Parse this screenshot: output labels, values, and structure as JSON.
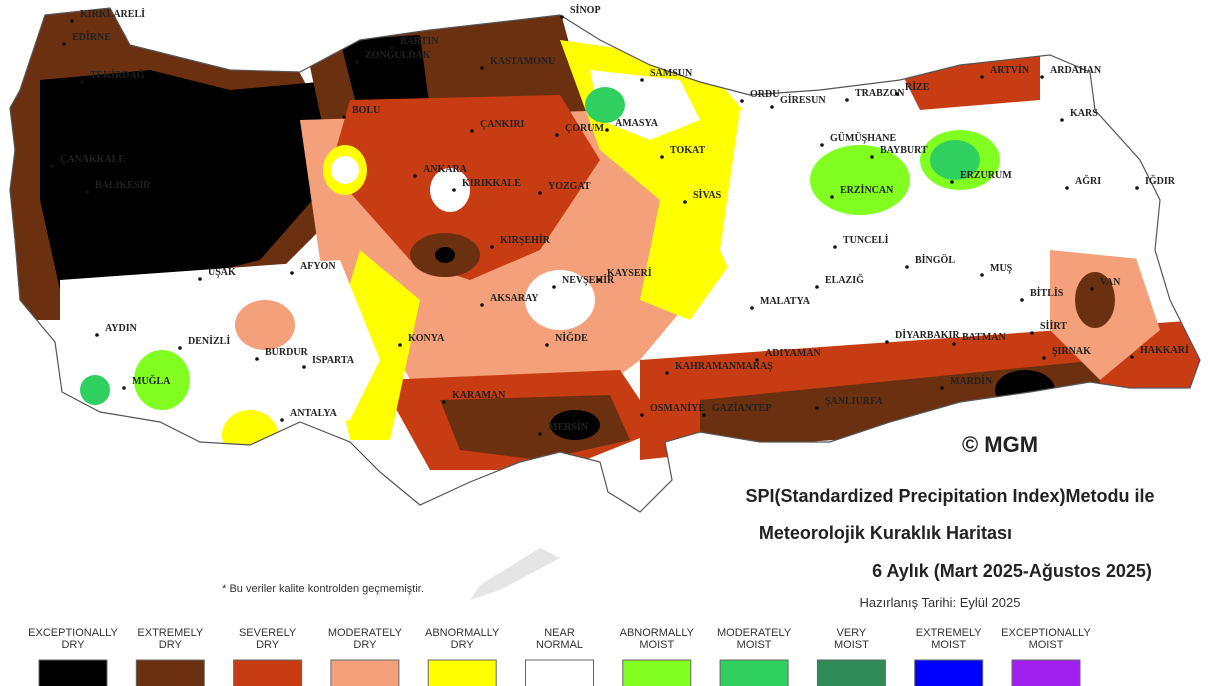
{
  "title_lines": [
    "SPI(Standardized Precipitation Index)Metodu ile",
    "Meteorolojik Kuraklık Haritası",
    "6 Aylık (Mart 2025-Ağustos 2025)"
  ],
  "date": "Hazırlanış Tarihi: Eylül 2025",
  "copyright": "© MGM",
  "note": "* Bu veriler kalite kontrolden geçmemiştir.",
  "cities": [
    "KIRKLARELİ",
    "EDİRNE",
    "TEKİRDAĞ",
    "ÇANAKKALE",
    "BALIKESİR",
    "BARTIN",
    "ZONGULDAK",
    "KASTAMONU",
    "SİNOP",
    "SAMSUN",
    "AMASYA",
    "ÇORUM",
    "ÇANKIRI",
    "BOLU",
    "ORDU",
    "GİRESUN",
    "TRABZON",
    "RİZE",
    "ARTVİN",
    "ARDAHAN",
    "KARS",
    "TOKAT",
    "GÜMÜŞHANE",
    "BAYBURT",
    "ERZURUM",
    "ERZİNCAN",
    "AĞRI",
    "IĞDIR",
    "SİVAS",
    "YOZGAT",
    "KIRIKKALE",
    "ANKARA",
    "KIRŞEHİR",
    "KAYSERİ",
    "NEVŞEHİR",
    "AKSARAY",
    "NİĞDE",
    "TUNCELİ",
    "BİNGÖL",
    "MUŞ",
    "BİTLİS",
    "VAN",
    "ELAZIĞ",
    "MALATYA",
    "DİYARBAKIR",
    "BATMAN",
    "SİİRT",
    "ŞIRNAK",
    "HAKKARİ",
    "MARDİN",
    "ADIYAMAN",
    "KAHRAMANMARAŞ",
    "OSMANİYE",
    "GAZİANTEP",
    "ŞANLIURFA",
    "KARAMAN",
    "MERSİN",
    "KONYA",
    "AFYON",
    "UŞAK",
    "AYDIN",
    "DENİZLİ",
    "MUĞLA",
    "BURDUR",
    "ISPARTA",
    "ANTALYA"
  ],
  "legend": [
    {
      "label": [
        "EXCEPTIONALLY",
        "DRY"
      ],
      "color": "#000000"
    },
    {
      "label": [
        "EXTREMELY",
        "DRY"
      ],
      "color": "#6b3010"
    },
    {
      "label": [
        "SEVERELY",
        "DRY"
      ],
      "color": "#c83c14"
    },
    {
      "label": [
        "MODERATELY",
        "DRY"
      ],
      "color": "#f4a07a"
    },
    {
      "label": [
        "ABNORMALLY",
        "DRY"
      ],
      "color": "#ffff00"
    },
    {
      "label": [
        "NEAR",
        "NORMAL"
      ],
      "color": "#ffffff"
    },
    {
      "label": [
        "ABNORMALLY",
        "MOIST"
      ],
      "color": "#80ff20"
    },
    {
      "label": [
        "MODERATELY",
        "MOIST"
      ],
      "color": "#30d060"
    },
    {
      "label": [
        "VERY",
        "MOIST"
      ],
      "color": "#2e8b57"
    },
    {
      "label": [
        "EXTREMELY",
        "MOIST"
      ],
      "color": "#0000ff"
    },
    {
      "label": [
        "EXCEPTIONALLY",
        "MOIST"
      ],
      "color": "#a020f0"
    }
  ]
}
